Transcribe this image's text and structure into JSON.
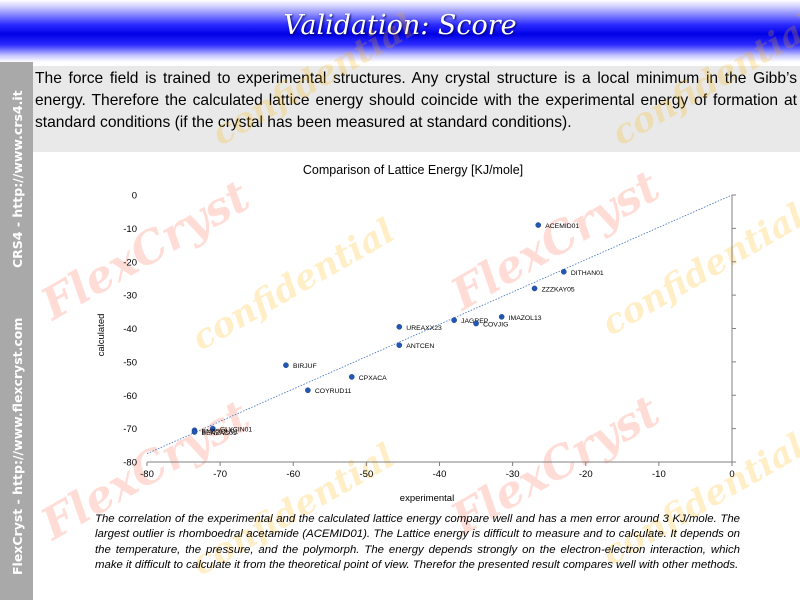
{
  "slide": {
    "title": "Validation: Score",
    "sidebar_left_top": "CRS4 - http://www.crs4.it",
    "sidebar_left_bottom": "FlexCryst - http://www.flexcryst.com",
    "intro": "The force field is trained to experimental structures. Any crystal structure is a local minimum in the Gibb’s energy. Therefore the calculated lattice energy should coincide with the experimental energy of formation at standard conditions (if the crystal has been measured at standard conditions).",
    "caption": "The correlation of the experimental and the calculated lattice energy compare well and has a men error around 3 KJ/mole. The largest outlier is rhomboedral acetamide   (ACEMID01). The Lattice energy is difficult to measure and to calculate. It depends on the temperature, the pressure, and the polymorph. The energy depends strongly on the electron-electron interaction, which make it difficult to calculate it from the theoretical point of view. Therefor the presented result compares well with other methods.",
    "watermark_flex": "FlexCryst",
    "watermark_conf": "confidential"
  },
  "colors": {
    "title_bar": "#0000e6",
    "sidebar": "#a9a9a9",
    "point": "#2158b5",
    "trend": "#3a6fc4"
  },
  "chart_data": {
    "type": "scatter",
    "title": "Comparison of Lattice Energy [KJ/mole]",
    "xlabel": "experimental",
    "ylabel": "calculated",
    "xlim": [
      -80,
      0
    ],
    "ylim": [
      -80,
      0
    ],
    "xticks": [
      -80,
      -70,
      -60,
      -50,
      -40,
      -30,
      -20,
      -10,
      0
    ],
    "yticks": [
      0,
      -10,
      -20,
      -30,
      -40,
      -50,
      -60,
      -70,
      -80
    ],
    "grid": false,
    "trendline": {
      "from": [
        -80,
        -77.5
      ],
      "to": [
        0,
        0
      ]
    },
    "points": [
      {
        "label": "ACEMID01",
        "x": -26.5,
        "y": -9
      },
      {
        "label": "DITHAN01",
        "x": -23,
        "y": -23
      },
      {
        "label": "ZZZKAY05",
        "x": -27,
        "y": -28
      },
      {
        "label": "IMAZOL13",
        "x": -31.5,
        "y": -36.5
      },
      {
        "label": "JAGREP",
        "x": -38,
        "y": -37.5
      },
      {
        "label": "COVJIG",
        "x": -35,
        "y": -38.5
      },
      {
        "label": "UREAXX23",
        "x": -45.5,
        "y": -39.5
      },
      {
        "label": "ANTCEN",
        "x": -45.5,
        "y": -45
      },
      {
        "label": "BIRJUF",
        "x": -61,
        "y": -51
      },
      {
        "label": "CPXACA",
        "x": -52,
        "y": -54.5
      },
      {
        "label": "COYRUD11",
        "x": -58,
        "y": -58.5
      },
      {
        "label": "GLYCIN01",
        "x": -71,
        "y": -70
      },
      {
        "label": "BNZOQU01",
        "x": -73.5,
        "y": -70.5
      },
      {
        "label": "BENZAC01",
        "x": -73.5,
        "y": -71
      }
    ]
  }
}
